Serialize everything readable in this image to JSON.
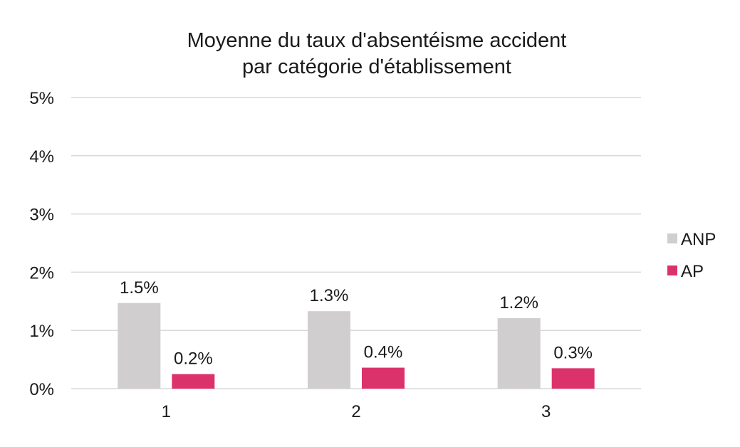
{
  "chart_data": {
    "type": "bar",
    "title_lines": [
      "Moyenne du taux d'absentéisme accident",
      "par catégorie d'établissement"
    ],
    "categories": [
      "1",
      "2",
      "3"
    ],
    "series": [
      {
        "name": "ANP",
        "color": "#d0cece",
        "values": [
          1.47,
          1.33,
          1.21
        ],
        "labels": [
          "1.5%",
          "1.3%",
          "1.2%"
        ]
      },
      {
        "name": "AP",
        "color": "#dc326b",
        "values": [
          0.25,
          0.36,
          0.35
        ],
        "labels": [
          "0.2%",
          "0.4%",
          "0.3%"
        ]
      }
    ],
    "ylim": [
      0,
      5
    ],
    "yticks": [
      0,
      1,
      2,
      3,
      4,
      5
    ],
    "ytick_labels": [
      "0%",
      "1%",
      "2%",
      "3%",
      "4%",
      "5%"
    ],
    "grid": true,
    "legend_position": "right",
    "gridline_color": "#d9d9d9"
  }
}
